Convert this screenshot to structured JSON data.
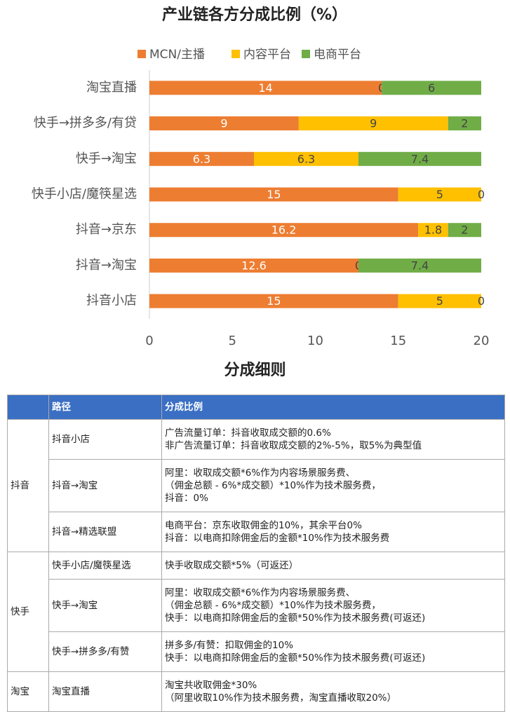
{
  "chart_data": {
    "type": "stacked-barh",
    "title": "产业链各方分成比例（%）",
    "categories": [
      "淘宝直播",
      "快手→拼多多/有贷",
      "快手→淘宝",
      "快手小店/魔筷星选",
      "抖音→京东",
      "抖音→淘宝",
      "抖音小店"
    ],
    "series": [
      {
        "name": "MCN/主播",
        "color": "#ed7d31",
        "values": [
          14,
          9,
          6.3,
          15,
          16.2,
          12.6,
          15
        ]
      },
      {
        "name": "内容平台",
        "color": "#ffc000",
        "values": [
          0,
          9,
          6.3,
          5,
          1.8,
          0,
          5
        ]
      },
      {
        "name": "电商平台",
        "color": "#70ad47",
        "values": [
          6,
          2,
          7.4,
          0,
          2,
          7.4,
          0
        ]
      }
    ],
    "xlim": [
      0,
      20
    ],
    "xticks": [
      0,
      5,
      10,
      15,
      20
    ],
    "grid": false,
    "legend": "top"
  },
  "table": {
    "title": "分成细则",
    "header": [
      "路径",
      "分成比例"
    ],
    "groups": [
      {
        "name": "抖音",
        "rows": [
          {
            "path": "抖音小店",
            "lines": [
              "广告流量订单：抖音收取成交额的0.6%",
              "非广告流量订单：抖音收取成交额的2%-5%，取5%为典型值"
            ]
          },
          {
            "path": "抖音→淘宝",
            "lines": [
              "阿里：收取成交额*6%作为内容场景服务费、",
              "（佣金总额 - 6%*成交额）*10%作为技术服务费，",
              "抖音：0%"
            ]
          },
          {
            "path": "抖音→精选联盟",
            "lines": [
              "电商平台：京东收取佣金的10%，其余平台0%",
              "抖音：以电商扣除佣金后的金额*10%作为技术服务费"
            ]
          }
        ]
      },
      {
        "name": "快手",
        "rows": [
          {
            "path": "快手小店/魔筷星选",
            "lines": [
              "快手收取成交额*5%（可返还）"
            ]
          },
          {
            "path": "快手→淘宝",
            "lines": [
              "阿里：收取成交额*6%作为内容场景服务费、",
              "（佣金总额 - 6%*成交额）*10%作为技术服务费，",
              "快手：以电商扣除佣金后的金额*50%作为技术服务费(可返还)"
            ]
          },
          {
            "path": "快手→拼多多/有赞",
            "lines": [
              "拼多多/有赞：扣取佣金的10%",
              "快手：以电商扣除佣金后的金额*50%作为技术服务费(可返还)"
            ]
          }
        ]
      },
      {
        "name": "淘宝",
        "rows": [
          {
            "path": "淘宝直播",
            "lines": [
              "淘宝共收取佣金*30%",
              "（阿里收取10%作为技术服务费，淘宝直播收取20%）"
            ]
          }
        ]
      }
    ]
  }
}
